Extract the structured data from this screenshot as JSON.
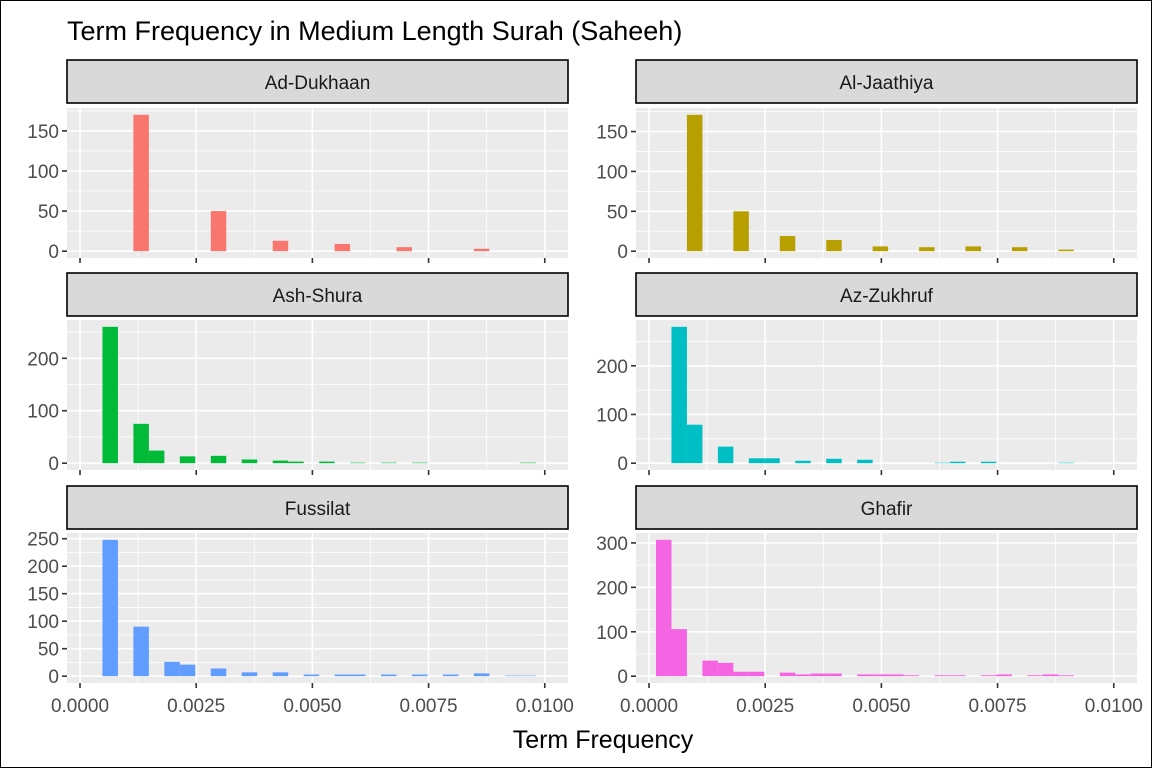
{
  "chart_data": {
    "type": "bar",
    "subtype": "histogram-facets",
    "title": "Term Frequency in Medium Length Surah (Saheeh)",
    "xlabel": "Term Frequency",
    "ylabel": "",
    "xlim": [
      -0.00028,
      0.0105
    ],
    "x_ticks": [
      "0.0000",
      "0.0025",
      "0.0050",
      "0.0075",
      "0.0100"
    ],
    "x_tick_values": [
      0,
      0.0025,
      0.005,
      0.0075,
      0.01
    ],
    "bins": {
      "first_edge": 0.00015,
      "width": 0.000333,
      "count": 30
    },
    "grid": true,
    "legend": "none",
    "facets": [
      {
        "name": "Ad-Dukhaan",
        "color": "#F8766D",
        "y_ticks": [
          0,
          50,
          100,
          150
        ],
        "counts": [
          0,
          0,
          0,
          170,
          0,
          0,
          0,
          0,
          50,
          0,
          0,
          0,
          13,
          0,
          0,
          0,
          9,
          0,
          0,
          0,
          5,
          0,
          0,
          0,
          0,
          3,
          0,
          0,
          0,
          0
        ]
      },
      {
        "name": "Al-Jaathiya",
        "color": "#B79F00",
        "y_ticks": [
          0,
          50,
          100,
          150
        ],
        "counts": [
          0,
          0,
          171,
          0,
          0,
          50,
          0,
          0,
          19,
          0,
          0,
          14,
          0,
          0,
          6,
          0,
          0,
          5,
          0,
          0,
          6,
          0,
          0,
          5,
          0,
          0,
          2,
          0,
          0,
          0
        ]
      },
      {
        "name": "Ash-Shura",
        "color": "#00BA38",
        "y_ticks": [
          0,
          100,
          200
        ],
        "counts": [
          0,
          260,
          0,
          75,
          24,
          0,
          13,
          0,
          14,
          0,
          7,
          0,
          5,
          3,
          0,
          3,
          0,
          1,
          0,
          1,
          0,
          1,
          0,
          0,
          0,
          0,
          0,
          0,
          1,
          0
        ]
      },
      {
        "name": "Az-Zukhruf",
        "color": "#00BFC4",
        "y_ticks": [
          0,
          100,
          200
        ],
        "counts": [
          0,
          280,
          79,
          0,
          34,
          0,
          10,
          10,
          0,
          5,
          0,
          9,
          0,
          7,
          0,
          0,
          0,
          0,
          1,
          3,
          0,
          3,
          0,
          0,
          0,
          0,
          1,
          0,
          0,
          0
        ]
      },
      {
        "name": "Fussilat",
        "color": "#619CFF",
        "y_ticks": [
          0,
          50,
          100,
          150,
          200,
          250
        ],
        "counts": [
          0,
          248,
          0,
          90,
          0,
          26,
          21,
          0,
          14,
          0,
          7,
          0,
          7,
          0,
          3,
          0,
          3,
          3,
          0,
          3,
          0,
          3,
          0,
          3,
          0,
          5,
          0,
          1,
          1,
          0
        ]
      },
      {
        "name": "Ghafir",
        "color": "#F564E3",
        "y_ticks": [
          0,
          100,
          200,
          300
        ],
        "counts": [
          307,
          106,
          0,
          35,
          30,
          10,
          10,
          0,
          8,
          4,
          6,
          6,
          0,
          4,
          4,
          4,
          2,
          0,
          2,
          2,
          0,
          2,
          4,
          0,
          2,
          4,
          2,
          0,
          0,
          0
        ]
      }
    ]
  }
}
